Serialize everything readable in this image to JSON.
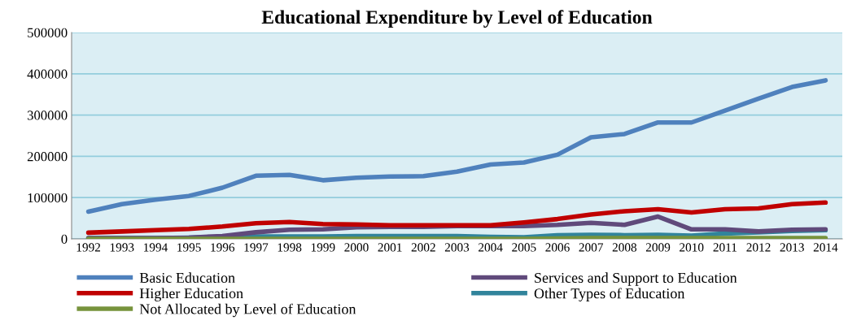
{
  "chart_data": {
    "type": "line",
    "title": "Educational Expenditure by Level of Education",
    "categories": [
      "1992",
      "1993",
      "1994",
      "1995",
      "1996",
      "1997",
      "1998",
      "1999",
      "2000",
      "2001",
      "2002",
      "2003",
      "2004",
      "2005",
      "2006",
      "2007",
      "2008",
      "2009",
      "2010",
      "2011",
      "2012",
      "2013",
      "2014"
    ],
    "series": [
      {
        "name": "Basic Education",
        "color": "#4f81bd",
        "values": [
          66000,
          84000,
          95000,
          104000,
          124000,
          153000,
          155000,
          142000,
          148000,
          151000,
          152000,
          163000,
          180000,
          185000,
          204000,
          246000,
          254000,
          282000,
          282000,
          311000,
          340000,
          368000,
          384000
        ]
      },
      {
        "name": "Higher Education",
        "color": "#c00000",
        "values": [
          15000,
          18000,
          21000,
          24000,
          30000,
          38000,
          41000,
          36000,
          35000,
          33000,
          33000,
          33000,
          33000,
          40000,
          48000,
          59000,
          67000,
          72000,
          64000,
          72000,
          74000,
          84000,
          88000
        ]
      },
      {
        "name": "Not Allocated by Level of Education",
        "color": "#77933c",
        "values": [
          0,
          0,
          0,
          0,
          0,
          0,
          0,
          0,
          0,
          0,
          0,
          0,
          0,
          0,
          1000,
          2000,
          2000,
          2000,
          2000,
          2000,
          2000,
          2000,
          2000
        ]
      },
      {
        "name": "Services and Support to Education",
        "color": "#604a7b",
        "values": [
          2000,
          2000,
          2000,
          3000,
          7000,
          16000,
          22000,
          23000,
          28000,
          29000,
          29000,
          31000,
          31000,
          31000,
          34000,
          39000,
          34000,
          54000,
          23000,
          23000,
          18000,
          22000,
          23000
        ]
      },
      {
        "name": "Other Types of Education",
        "color": "#31849b",
        "values": [
          2000,
          2000,
          2000,
          3000,
          5000,
          6000,
          6000,
          6000,
          7000,
          7000,
          7000,
          7000,
          5000,
          4000,
          9000,
          10000,
          9000,
          10000,
          8000,
          13000,
          16000,
          19000,
          21000
        ]
      }
    ],
    "ylim": [
      0,
      500000
    ],
    "yticks": [
      0,
      100000,
      200000,
      300000,
      400000,
      500000
    ],
    "grid": "y",
    "legend": "bottom",
    "marker": "none",
    "line_style": "solid"
  }
}
